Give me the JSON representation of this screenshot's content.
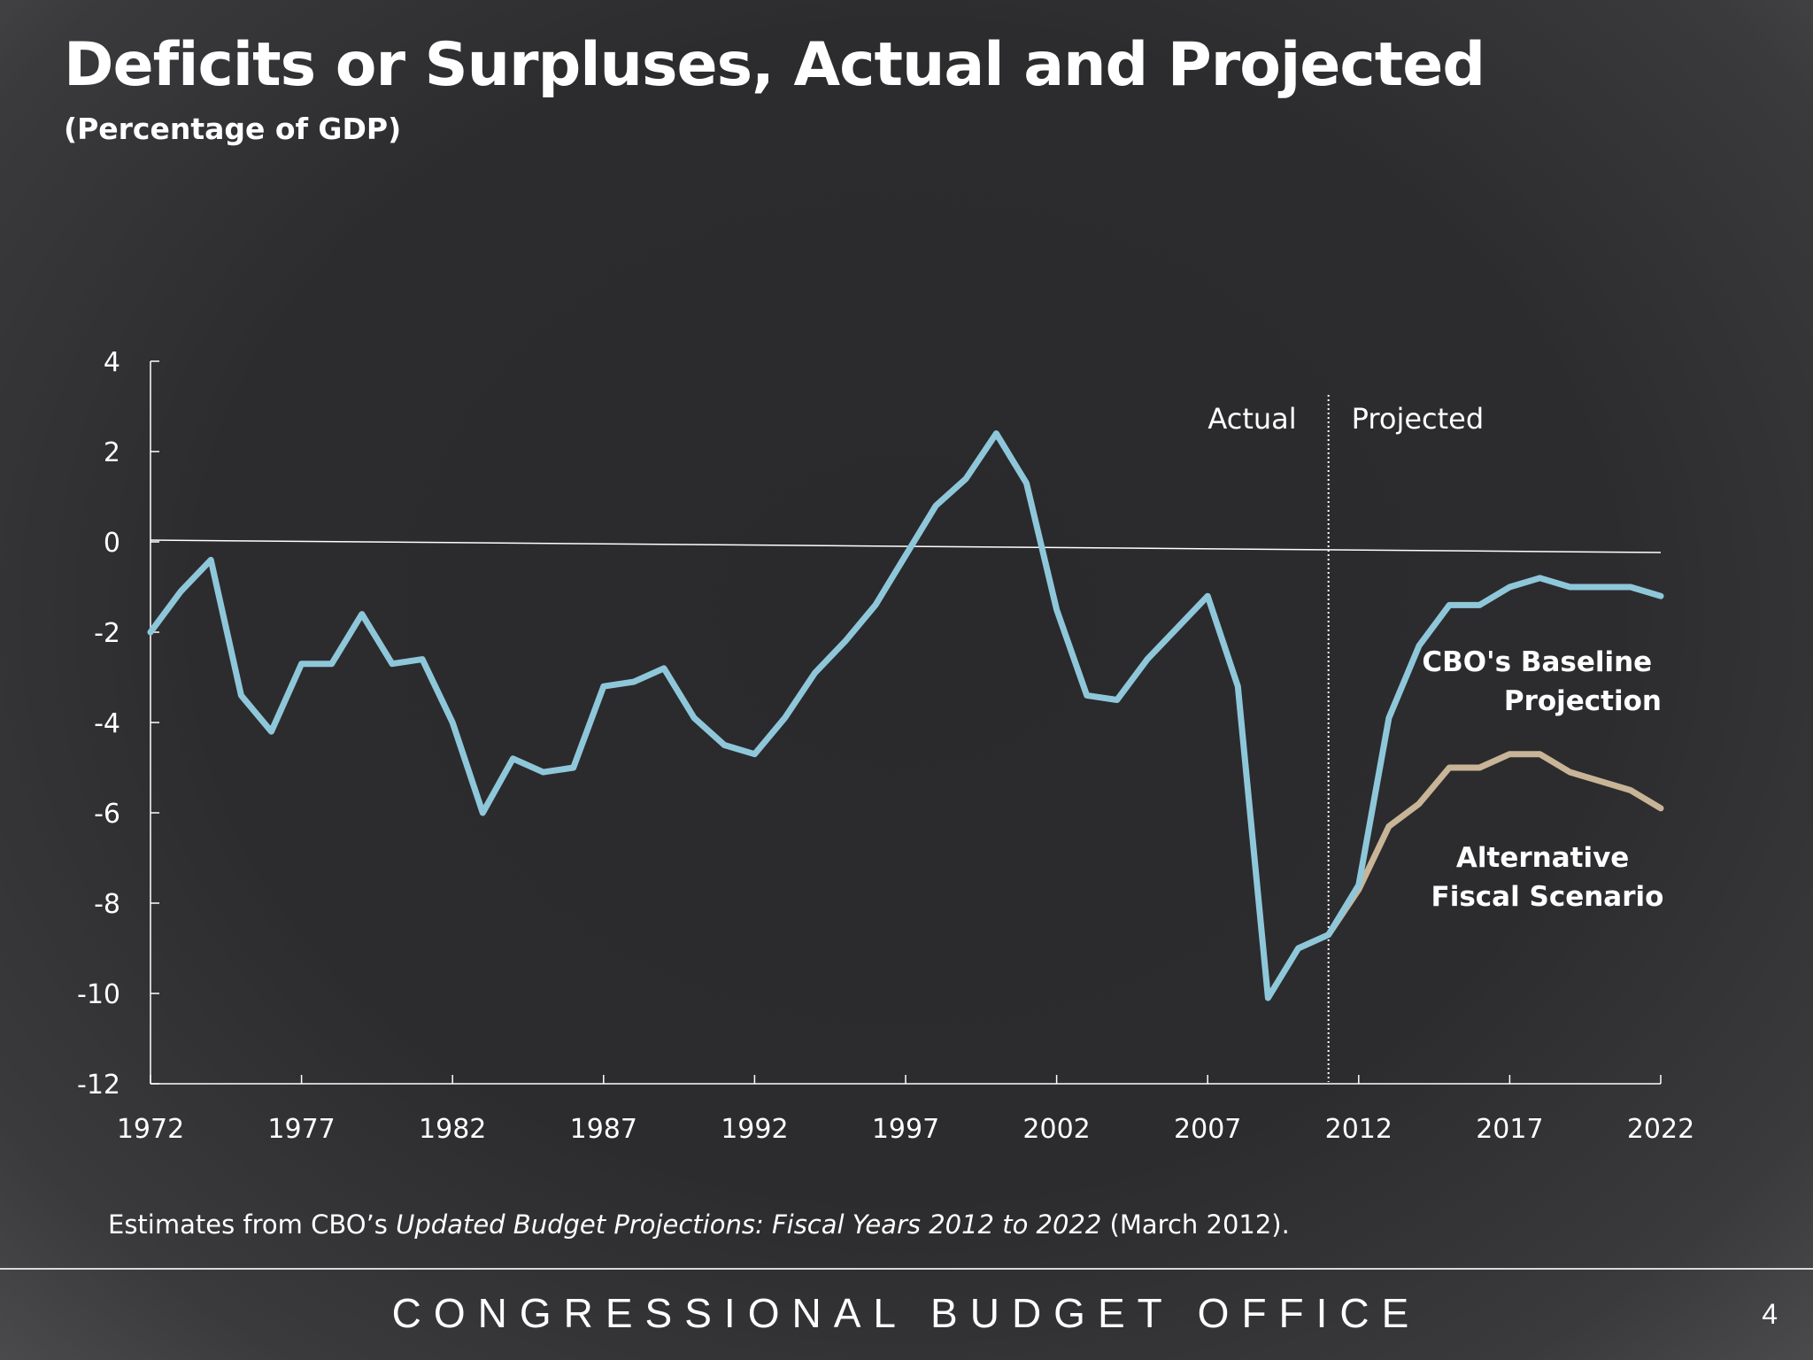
{
  "title": "Deficits or Surpluses, Actual and Projected",
  "subtitle": "(Percentage of GDP)",
  "source": {
    "prefix": "Estimates from CBO’s ",
    "italic": "Updated Budget Projections: Fiscal Years 2012 to 2022",
    "suffix": " (March 2012)."
  },
  "footer": {
    "organization": "CONGRESSIONAL BUDGET OFFICE",
    "page_number": "4"
  },
  "colors": {
    "baseline": "#8fc7da",
    "alternative": "#c8b497",
    "axis": "#ffffff"
  },
  "chart_data": {
    "type": "line",
    "xlim": [
      1972,
      2022
    ],
    "ylim": [
      -12,
      4
    ],
    "x_ticks": [
      1972,
      1977,
      1982,
      1987,
      1992,
      1997,
      2002,
      2007,
      2012,
      2017,
      2022
    ],
    "y_ticks": [
      4,
      2,
      0,
      -2,
      -4,
      -6,
      -8,
      -10,
      -12
    ],
    "divider": {
      "x": 2011,
      "left_label": "Actual",
      "right_label": "Projected"
    },
    "series": [
      {
        "name": "CBO's Baseline Projection",
        "label_lines": [
          "CBO's Baseline",
          "Projection"
        ],
        "x": [
          1972,
          1973,
          1974,
          1975,
          1976,
          1977,
          1978,
          1979,
          1980,
          1981,
          1982,
          1983,
          1984,
          1985,
          1986,
          1987,
          1988,
          1989,
          1990,
          1991,
          1992,
          1993,
          1994,
          1995,
          1996,
          1997,
          1998,
          1999,
          2000,
          2001,
          2002,
          2003,
          2004,
          2005,
          2006,
          2007,
          2008,
          2009,
          2010,
          2011,
          2012,
          2013,
          2014,
          2015,
          2016,
          2017,
          2018,
          2019,
          2020,
          2021,
          2022
        ],
        "y": [
          -2.0,
          -1.1,
          -0.4,
          -3.4,
          -4.2,
          -2.7,
          -2.7,
          -1.6,
          -2.7,
          -2.6,
          -4.0,
          -6.0,
          -4.8,
          -5.1,
          -5.0,
          -3.2,
          -3.1,
          -2.8,
          -3.9,
          -4.5,
          -4.7,
          -3.9,
          -2.9,
          -2.2,
          -1.4,
          -0.3,
          0.8,
          1.4,
          2.4,
          1.3,
          -1.5,
          -3.4,
          -3.5,
          -2.6,
          -1.9,
          -1.2,
          -3.2,
          -10.1,
          -9.0,
          -8.7,
          -7.6,
          -3.9,
          -2.3,
          -1.4,
          -1.4,
          -1.0,
          -0.8,
          -1.0,
          -1.0,
          -1.0,
          -1.2
        ]
      },
      {
        "name": "Alternative Fiscal Scenario",
        "label_lines": [
          "Alternative",
          "Fiscal Scenario"
        ],
        "x": [
          2011,
          2012,
          2013,
          2014,
          2015,
          2016,
          2017,
          2018,
          2019,
          2020,
          2021,
          2022
        ],
        "y": [
          -8.7,
          -7.7,
          -6.3,
          -5.8,
          -5.0,
          -5.0,
          -4.7,
          -4.7,
          -5.1,
          -5.3,
          -5.5,
          -5.9
        ]
      }
    ]
  }
}
